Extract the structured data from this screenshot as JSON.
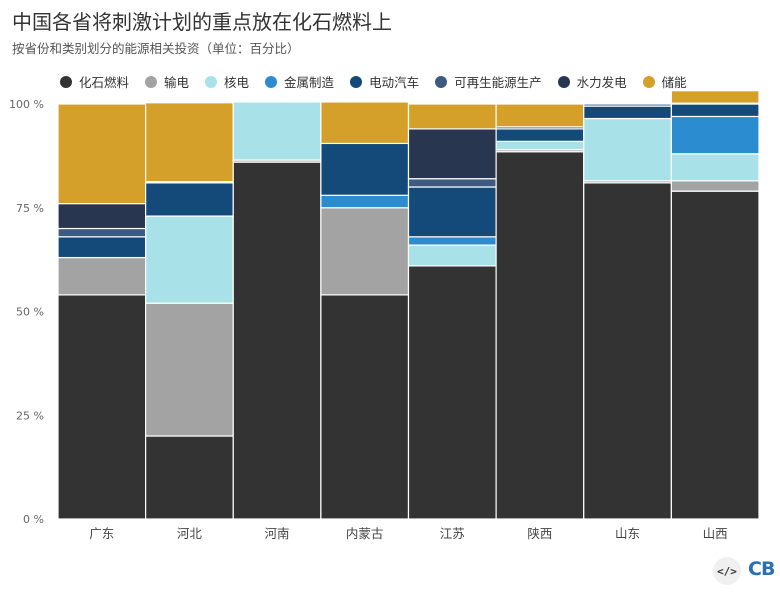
{
  "header": {
    "title": "中国各省将刺激计划的重点放在化石燃料上",
    "subtitle": "按省份和类别划分的能源相关投资（单位：百分比）"
  },
  "footer": {
    "embed_label": "</>",
    "logo_text": "CB"
  },
  "chart_data": {
    "type": "bar",
    "stacked": true,
    "orientation": "vertical",
    "categories": [
      "广东",
      "河北",
      "河南",
      "内蒙古",
      "江苏",
      "陕西",
      "山东",
      "山西"
    ],
    "ylim": [
      0,
      100
    ],
    "y_ticks": [
      0,
      25,
      50,
      75,
      100
    ],
    "y_tick_labels": [
      "0 %",
      "25 %",
      "50 %",
      "75 %",
      "100 %"
    ],
    "legend_position": "top",
    "series": [
      {
        "name": "化石燃料",
        "color": "#333333",
        "values": [
          54,
          20,
          86,
          54,
          61,
          88.5,
          81,
          79
        ]
      },
      {
        "name": "输电",
        "color": "#a3a3a3",
        "values": [
          9,
          32,
          0.5,
          21,
          0,
          0.5,
          0.5,
          2.5
        ]
      },
      {
        "name": "核电",
        "color": "#a8e2e8",
        "values": [
          0,
          21,
          14,
          0,
          5,
          2,
          15,
          6.5
        ]
      },
      {
        "name": "金属制造",
        "color": "#2b8dd0",
        "values": [
          0,
          0,
          0,
          3,
          2,
          0,
          0,
          9
        ]
      },
      {
        "name": "电动汽车",
        "color": "#144a7a",
        "values": [
          5,
          8,
          0,
          12.5,
          12,
          3,
          3,
          3
        ]
      },
      {
        "name": "可再生能源生产",
        "color": "#3d5a80",
        "values": [
          2,
          0.3,
          0,
          0,
          2,
          0.5,
          0.5,
          0.2
        ]
      },
      {
        "name": "水力发电",
        "color": "#283650",
        "values": [
          6,
          0,
          0,
          0,
          12,
          0,
          0,
          0
        ]
      },
      {
        "name": "储能",
        "color": "#d4a02a",
        "values": [
          24,
          19,
          0,
          10,
          6,
          5.5,
          0,
          3
        ]
      }
    ]
  }
}
